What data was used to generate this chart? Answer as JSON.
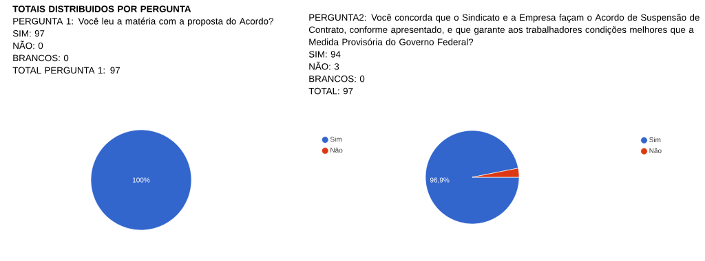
{
  "chart_data": [
    {
      "type": "pie",
      "title": "TOTAIS DISTRIBUIDOS POR PERGUNTA",
      "annotations": [
        "PERGUNTA 1: Você leu a matéria com a proposta do Acordo?",
        "SIM: 97",
        "NÃO: 0",
        "BRANCOS: 0",
        "TOTAL PERGUNTA 1: 97"
      ],
      "categories": [
        "Sim",
        "Não"
      ],
      "values": [
        100,
        0
      ],
      "colors": [
        "#3366cc",
        "#dc3912"
      ],
      "value_labels": [
        "100%",
        null
      ],
      "legend": "right"
    },
    {
      "type": "pie",
      "annotations": [
        "PERGUNTA2: Você concorda que o Sindicato e a Empresa façam o Acordo de Suspensão de Contrato, conforme apresentado, e que garante aos trabalhadores condições melhores que a Medida Provisória do Governo Federal?",
        "SIM: 94",
        "NÃO: 3",
        "BRANCOS: 0",
        "TOTAL: 97"
      ],
      "categories": [
        "Sim",
        "Não"
      ],
      "values": [
        96.9,
        3.1
      ],
      "colors": [
        "#3366cc",
        "#dc3912"
      ],
      "value_labels": [
        "96,9%",
        null
      ],
      "legend": "right"
    }
  ]
}
